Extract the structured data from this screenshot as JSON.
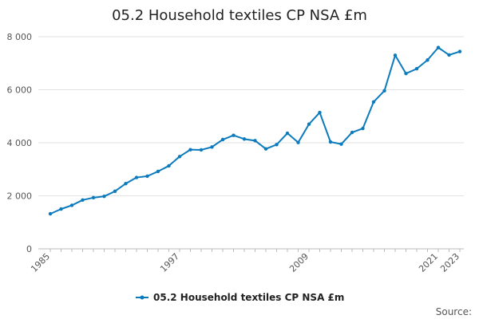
{
  "chart_data": {
    "type": "line",
    "title": "05.2 Household textiles CP NSA £m",
    "xlabel": "",
    "ylabel": "",
    "x": [
      1985,
      1986,
      1987,
      1988,
      1989,
      1990,
      1991,
      1992,
      1993,
      1994,
      1995,
      1996,
      1997,
      1998,
      1999,
      2000,
      2001,
      2002,
      2003,
      2004,
      2005,
      2006,
      2007,
      2008,
      2009,
      2010,
      2011,
      2012,
      2013,
      2014,
      2015,
      2016,
      2017,
      2018,
      2019,
      2020,
      2021,
      2022,
      2023
    ],
    "x_tick_labels": [
      "1985",
      "1997",
      "2009",
      "2021",
      "2023"
    ],
    "x_tick_values": [
      1985,
      1997,
      2009,
      2021,
      2023
    ],
    "y_ticks": [
      0,
      2000,
      4000,
      6000,
      8000
    ],
    "y_tick_labels": [
      "0",
      "2 000",
      "4 000",
      "6 000",
      "8 000"
    ],
    "ylim": [
      0,
      8000
    ],
    "grid": true,
    "legend_position": "bottom",
    "series": [
      {
        "name": "05.2 Household textiles CP NSA £m",
        "color": "#0b7bbd",
        "values": [
          1320,
          1500,
          1640,
          1840,
          1930,
          1980,
          2170,
          2460,
          2690,
          2740,
          2920,
          3130,
          3480,
          3740,
          3730,
          3840,
          4120,
          4280,
          4140,
          4080,
          3770,
          3930,
          4360,
          4010,
          4700,
          5140,
          4030,
          3950,
          4390,
          4540,
          5540,
          5960,
          7300,
          6610,
          6790,
          7120,
          7590,
          7310,
          7440
        ]
      }
    ],
    "source_label": "Source:"
  }
}
